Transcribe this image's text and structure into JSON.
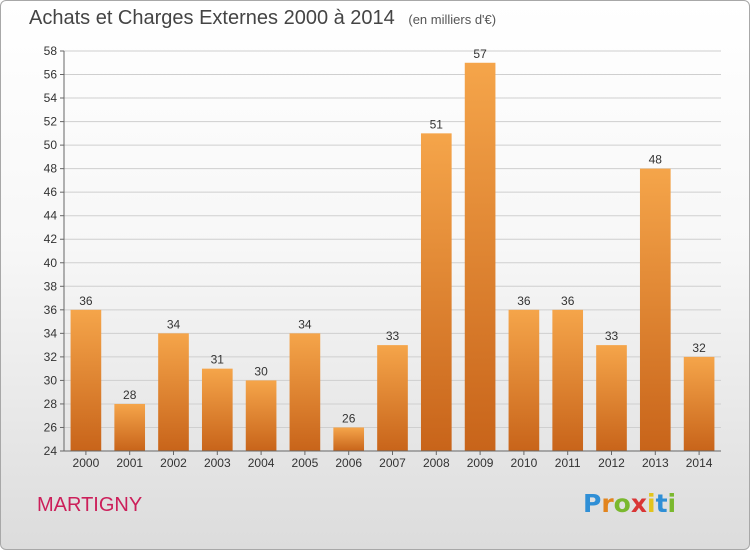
{
  "header": {
    "title": "Achats et Charges Externes 2000 à 2014",
    "unit": "(en milliers d'€)"
  },
  "footer": {
    "city": "MARTIGNY",
    "logo": [
      "P",
      "r",
      "o",
      "x",
      "i",
      "t",
      "i"
    ]
  },
  "colors": {
    "bar_top": "#f5a54a",
    "bar_bottom": "#c8641a",
    "city": "#cc1f5a"
  },
  "chart_data": {
    "type": "bar",
    "title": "Achats et Charges Externes 2000 à 2014",
    "subtitle": "(en milliers d'€)",
    "categories": [
      "2000",
      "2001",
      "2002",
      "2003",
      "2004",
      "2005",
      "2006",
      "2007",
      "2008",
      "2009",
      "2010",
      "2011",
      "2012",
      "2013",
      "2014"
    ],
    "values": [
      36,
      28,
      34,
      31,
      30,
      34,
      26,
      33,
      51,
      57,
      36,
      36,
      33,
      48,
      32
    ],
    "ylim": [
      24,
      58
    ],
    "yticks": [
      24,
      26,
      28,
      30,
      32,
      34,
      36,
      38,
      40,
      42,
      44,
      46,
      48,
      50,
      52,
      54,
      56,
      58
    ],
    "grid": true,
    "data_labels": true,
    "xlabel": "",
    "ylabel": ""
  }
}
